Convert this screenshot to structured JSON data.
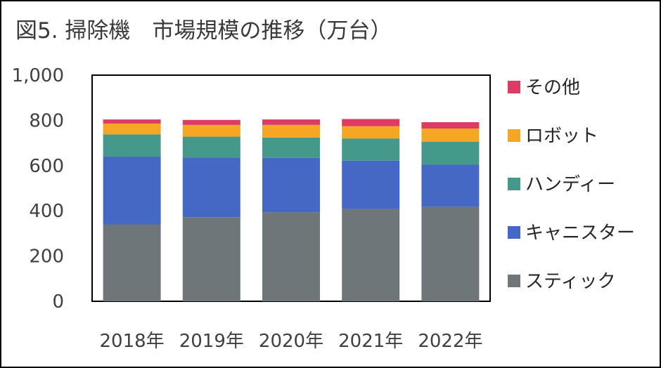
{
  "chart_data": {
    "type": "bar",
    "stacked": true,
    "title": "図5. 掃除機　市場規模の推移（万台）",
    "xlabel": "",
    "ylabel": "",
    "ylim": [
      0,
      1000
    ],
    "yticks": [
      0,
      200,
      400,
      600,
      800,
      1000
    ],
    "ytick_labels": [
      "0",
      "200",
      "400",
      "600",
      "800",
      "1,000"
    ],
    "grid": false,
    "legend_position": "right",
    "categories": [
      "2018年",
      "2019年",
      "2020年",
      "2021年",
      "2022年"
    ],
    "series": [
      {
        "name": "スティック",
        "color": "#6e767a",
        "values": [
          340,
          372,
          394,
          408,
          418
        ]
      },
      {
        "name": "キャニスター",
        "color": "#4468c4",
        "values": [
          300,
          264,
          240,
          214,
          186
        ]
      },
      {
        "name": "ハンディー",
        "color": "#45998b",
        "values": [
          98,
          92,
          90,
          98,
          102
        ]
      },
      {
        "name": "ロボット",
        "color": "#f5a623",
        "values": [
          48,
          52,
          56,
          54,
          58
        ]
      },
      {
        "name": "その他",
        "color": "#dc3c64",
        "values": [
          18,
          22,
          24,
          32,
          28
        ]
      }
    ]
  }
}
